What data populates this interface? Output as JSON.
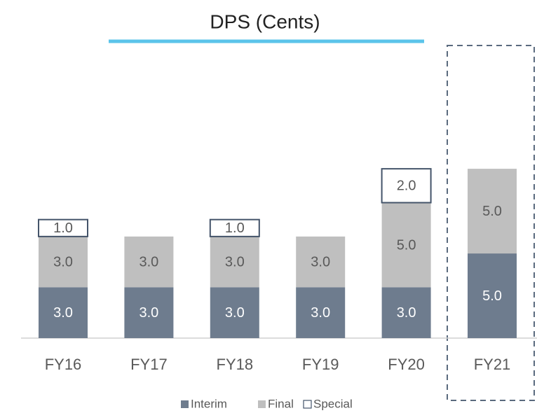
{
  "chart_data": {
    "type": "stacked_bar",
    "title": "DPS (Cents)",
    "categories": [
      "FY16",
      "FY17",
      "FY18",
      "FY19",
      "FY20",
      "FY21"
    ],
    "series": [
      {
        "name": "Interim",
        "color": "#6e7c8e",
        "values": [
          3,
          3,
          3,
          3,
          3,
          5
        ],
        "value_labels": [
          "3.0",
          "3.0",
          "3.0",
          "3.0",
          "3.0",
          "5.0"
        ]
      },
      {
        "name": "Final",
        "color": "#bfbfbf",
        "values": [
          3,
          3,
          3,
          3,
          5,
          5
        ],
        "value_labels": [
          "3.0",
          "3.0",
          "3.0",
          "3.0",
          "5.0",
          "5.0"
        ]
      },
      {
        "name": "Special",
        "color": "#ffffff",
        "values": [
          1,
          null,
          1,
          null,
          2,
          null
        ],
        "value_labels": [
          "1.0",
          null,
          "1.0",
          null,
          "2.0",
          null
        ]
      }
    ],
    "ylim": [
      0,
      16
    ]
  }
}
